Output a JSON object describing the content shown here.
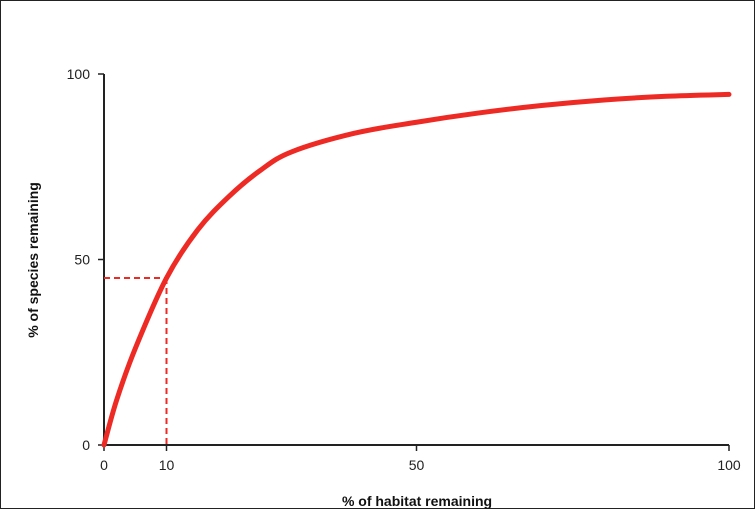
{
  "chart_data": {
    "type": "line",
    "title": "",
    "xlabel": "% of habitat remaining",
    "ylabel": "% of species remaining",
    "xlim": [
      0,
      100
    ],
    "ylim": [
      0,
      100
    ],
    "x_ticks": [
      0,
      10,
      50,
      100
    ],
    "y_ticks": [
      0,
      50,
      100
    ],
    "grid": false,
    "series": [
      {
        "color": "#ee2a24",
        "x": [
          0,
          2,
          5,
          10,
          15,
          20,
          25,
          30,
          40,
          50,
          60,
          70,
          80,
          90,
          100
        ],
        "y": [
          0,
          12,
          26,
          45,
          58,
          67,
          74,
          79,
          84,
          87,
          89.5,
          91.5,
          93,
          94,
          94.5
        ]
      }
    ],
    "annotation": {
      "type": "dashed-guide",
      "color": "#ee2a24",
      "x": 10,
      "y": 45
    }
  }
}
